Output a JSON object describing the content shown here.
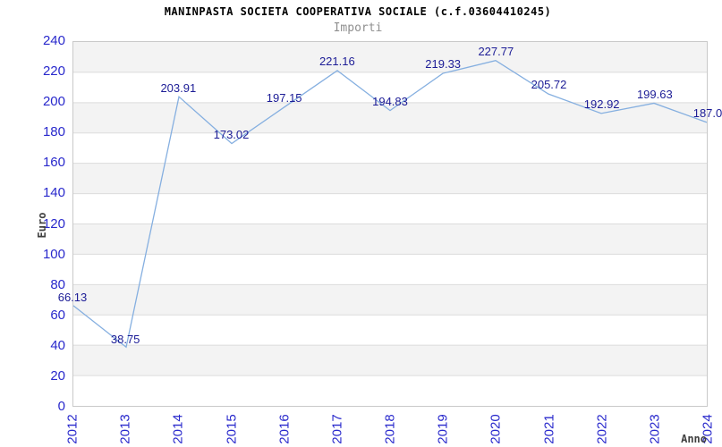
{
  "chart_data": {
    "type": "line",
    "title": "MANINPASTA SOCIETA COOPERATIVA SOCIALE (c.f.03604410245)",
    "subtitle": "Importi",
    "xlabel": "Anno",
    "ylabel": "Euro",
    "categories": [
      "2012",
      "2013",
      "2014",
      "2015",
      "2016",
      "2017",
      "2018",
      "2019",
      "2020",
      "2021",
      "2022",
      "2023",
      "2024"
    ],
    "values": [
      66.13,
      38.75,
      203.91,
      173.02,
      197.15,
      221.16,
      194.83,
      219.33,
      227.77,
      205.72,
      192.92,
      199.63,
      187.0
    ],
    "value_labels": [
      "66.13",
      "38.75",
      "203.91",
      "173.02",
      "197.15",
      "221.16",
      "194.83",
      "219.33",
      "227.77",
      "205.72",
      "192.92",
      "199.63",
      "187.0"
    ],
    "series_name": "Importi",
    "ylim": [
      0,
      240
    ],
    "ytick_step": 20,
    "yticks": [
      "0",
      "20",
      "40",
      "60",
      "80",
      "100",
      "120",
      "140",
      "160",
      "180",
      "200",
      "220",
      "240"
    ],
    "grid": "horizontal-bands",
    "legend": "none"
  },
  "colors": {
    "line": "#85afe0",
    "value_label": "#1c1c96",
    "tick_label": "#2929cc",
    "band_gray": "#f3f3f3",
    "band_white": "#ffffff",
    "gridline": "#dcdcdc",
    "plot_border": "#c9c9c9",
    "title": "#000000",
    "subtitle": "#8f8f8f",
    "axis_title": "#404040"
  }
}
